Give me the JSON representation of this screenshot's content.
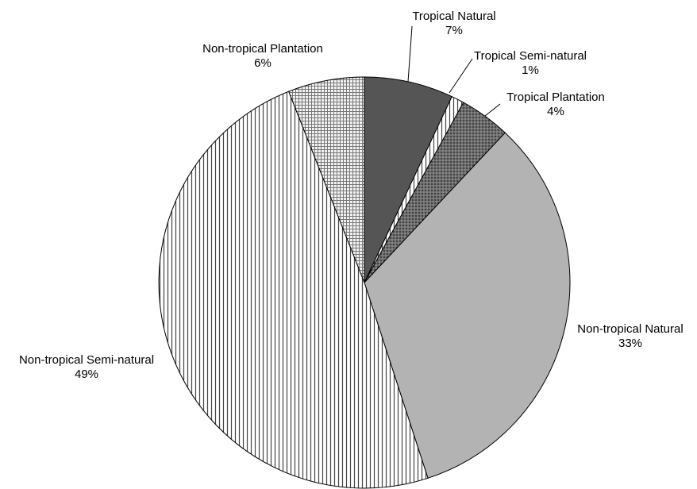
{
  "chart_data": {
    "type": "pie",
    "title": "",
    "slices": [
      {
        "name": "Tropical Natural",
        "value": 7,
        "label": "7%",
        "pattern": "solid-dark"
      },
      {
        "name": "Tropical Semi-natural",
        "value": 1,
        "label": "1%",
        "pattern": "vertical-stripes"
      },
      {
        "name": "Tropical Plantation",
        "value": 4,
        "label": "4%",
        "pattern": "crosshatch-dark"
      },
      {
        "name": "Non-tropical Natural",
        "value": 33,
        "label": "33%",
        "pattern": "solid-light"
      },
      {
        "name": "Non-tropical Semi-natural",
        "value": 49,
        "label": "49%",
        "pattern": "vertical-stripes"
      },
      {
        "name": "Non-tropical Plantation",
        "value": 6,
        "label": "6%",
        "pattern": "grid-light"
      }
    ],
    "start": "12 o'clock",
    "direction": "clockwise",
    "legend": "none",
    "colors": {
      "solid-dark": "#555555",
      "solid-light": "#b3b3b3",
      "stripe-line": "#444444",
      "crosshatch-base": "#444444",
      "crosshatch-line": "#9a9a9a",
      "grid-base": "#f2f2f2",
      "grid-line": "#777777",
      "outline": "#000000"
    }
  }
}
